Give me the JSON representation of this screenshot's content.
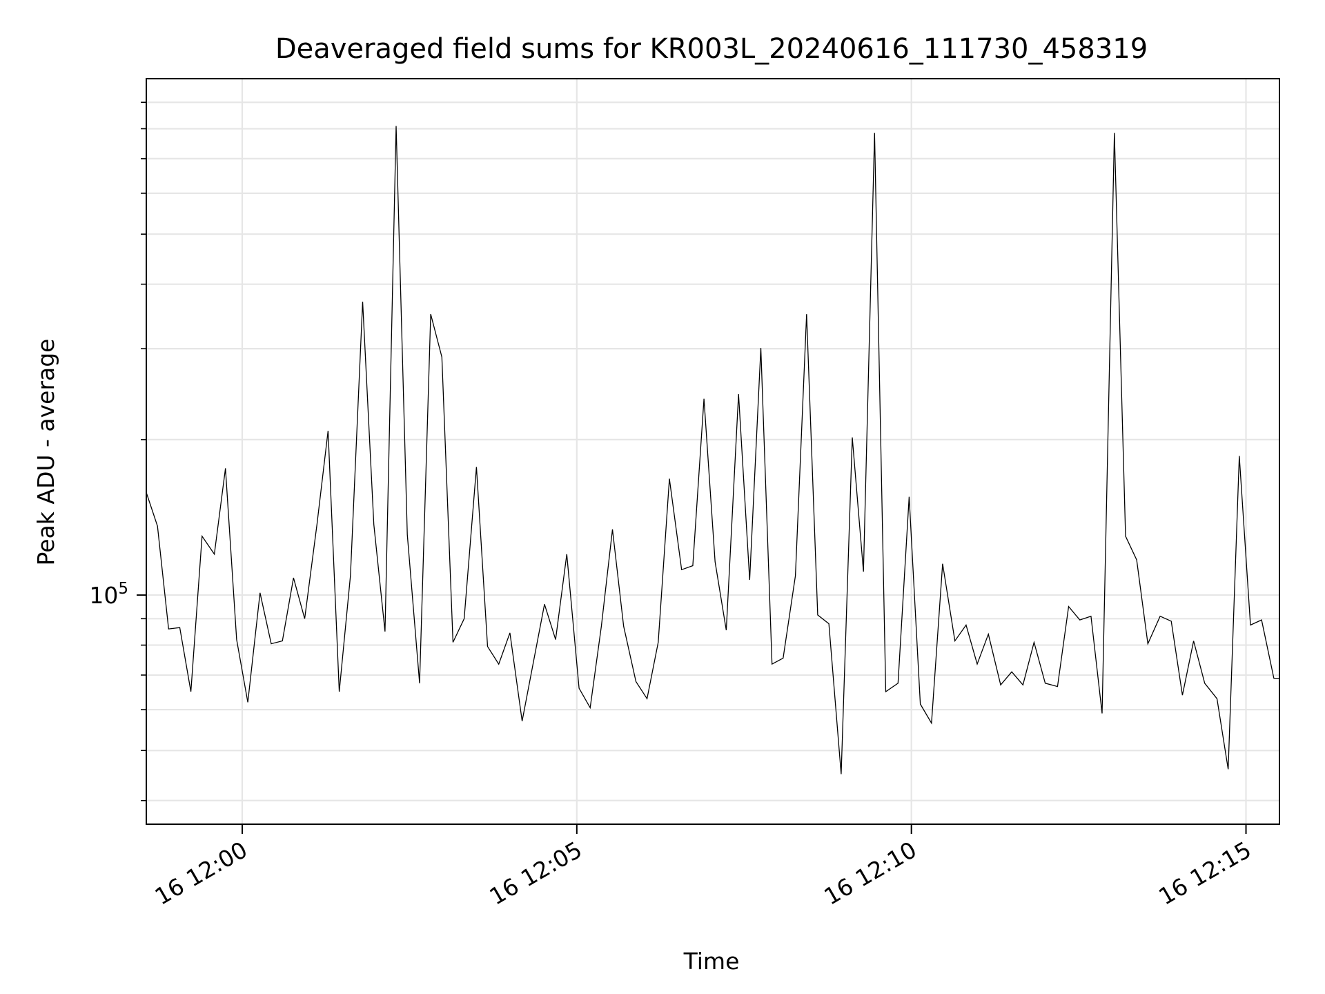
{
  "chart_data": {
    "type": "line",
    "title": "Deaveraged field sums for KR003L_20240616_111730_458319",
    "xlabel": "Time",
    "ylabel": "Peak ADU - average",
    "y_scale": "log",
    "x_ticks": [
      {
        "value": "2024-06-16 12:00",
        "label": "16 12:00"
      },
      {
        "value": "2024-06-16 12:05",
        "label": "16 12:05"
      },
      {
        "value": "2024-06-16 12:10",
        "label": "16 12:10"
      },
      {
        "value": "2024-06-16 12:15",
        "label": "16 12:15"
      }
    ],
    "y_ticks": [
      {
        "value": 100000,
        "label_base": "10",
        "label_exp": "5"
      }
    ],
    "y_minor_ticks": [
      40000,
      50000,
      60000,
      70000,
      80000,
      90000,
      200000,
      300000,
      400000,
      500000,
      600000,
      700000,
      800000,
      900000
    ],
    "xlim": [
      "2024-06-16 11:58:34",
      "2024-06-16 12:15:30"
    ],
    "ylim": [
      36000,
      1000000
    ],
    "grid": true,
    "line_color": "#000000",
    "series": [
      {
        "x": [
          "2024-06-16 11:58:34",
          "2024-06-16 11:58:44",
          "2024-06-16 11:58:54",
          "2024-06-16 11:59:04",
          "2024-06-16 11:59:14",
          "2024-06-16 11:59:24",
          "2024-06-16 11:59:35",
          "2024-06-16 11:59:45",
          "2024-06-16 11:59:55",
          "2024-06-16 12:00:05",
          "2024-06-16 12:00:16",
          "2024-06-16 12:00:26",
          "2024-06-16 12:00:36",
          "2024-06-16 12:00:46",
          "2024-06-16 12:00:56",
          "2024-06-16 12:01:07",
          "2024-06-16 12:01:17",
          "2024-06-16 12:01:27",
          "2024-06-16 12:01:37",
          "2024-06-16 12:01:48",
          "2024-06-16 12:01:58",
          "2024-06-16 12:02:08",
          "2024-06-16 12:02:18",
          "2024-06-16 12:02:28",
          "2024-06-16 12:02:39",
          "2024-06-16 12:02:49",
          "2024-06-16 12:02:59",
          "2024-06-16 12:03:09",
          "2024-06-16 12:03:19",
          "2024-06-16 12:03:30",
          "2024-06-16 12:03:40",
          "2024-06-16 12:03:50",
          "2024-06-16 12:04:00",
          "2024-06-16 12:04:11",
          "2024-06-16 12:04:21",
          "2024-06-16 12:04:31",
          "2024-06-16 12:04:41",
          "2024-06-16 12:04:51",
          "2024-06-16 12:05:02",
          "2024-06-16 12:05:12",
          "2024-06-16 12:05:22",
          "2024-06-16 12:05:32",
          "2024-06-16 12:05:42",
          "2024-06-16 12:05:53",
          "2024-06-16 12:06:03",
          "2024-06-16 12:06:13",
          "2024-06-16 12:06:23",
          "2024-06-16 12:06:34",
          "2024-06-16 12:06:44",
          "2024-06-16 12:06:54",
          "2024-06-16 12:07:04",
          "2024-06-16 12:07:14",
          "2024-06-16 12:07:25",
          "2024-06-16 12:07:35",
          "2024-06-16 12:07:45",
          "2024-06-16 12:07:55",
          "2024-06-16 12:08:05",
          "2024-06-16 12:08:16",
          "2024-06-16 12:08:26",
          "2024-06-16 12:08:36",
          "2024-06-16 12:08:46",
          "2024-06-16 12:08:57",
          "2024-06-16 12:09:07",
          "2024-06-16 12:09:17",
          "2024-06-16 12:09:27",
          "2024-06-16 12:09:37",
          "2024-06-16 12:09:48",
          "2024-06-16 12:09:58",
          "2024-06-16 12:10:08",
          "2024-06-16 12:10:18",
          "2024-06-16 12:10:28",
          "2024-06-16 12:10:39",
          "2024-06-16 12:10:49",
          "2024-06-16 12:10:59",
          "2024-06-16 12:11:09",
          "2024-06-16 12:11:20",
          "2024-06-16 12:11:30",
          "2024-06-16 12:11:40",
          "2024-06-16 12:11:50",
          "2024-06-16 12:12:00",
          "2024-06-16 12:12:11",
          "2024-06-16 12:12:21",
          "2024-06-16 12:12:31",
          "2024-06-16 12:12:41",
          "2024-06-16 12:12:51",
          "2024-06-16 12:13:02",
          "2024-06-16 12:13:12",
          "2024-06-16 12:13:22",
          "2024-06-16 12:13:32",
          "2024-06-16 12:13:43",
          "2024-06-16 12:13:53",
          "2024-06-16 12:14:03",
          "2024-06-16 12:14:13",
          "2024-06-16 12:14:23",
          "2024-06-16 12:14:34",
          "2024-06-16 12:14:44",
          "2024-06-16 12:14:54",
          "2024-06-16 12:15:04",
          "2024-06-16 12:15:14",
          "2024-06-16 12:15:25",
          "2024-06-16 12:15:30"
        ],
        "y": [
          158000,
          136000,
          86000,
          86500,
          65000,
          130000,
          120000,
          176000,
          82000,
          62000,
          101000,
          80500,
          81500,
          108000,
          90000,
          137000,
          208000,
          65000,
          109000,
          370000,
          137000,
          85000,
          810000,
          131000,
          67500,
          350000,
          289000,
          81000,
          90000,
          177000,
          79500,
          73500,
          84500,
          57000,
          74000,
          96000,
          82000,
          120000,
          66000,
          60500,
          87000,
          134000,
          87000,
          68000,
          63000,
          81000,
          168000,
          112000,
          114000,
          240000,
          116000,
          85500,
          245000,
          107000,
          301000,
          73500,
          75500,
          109000,
          350000,
          91500,
          88000,
          45000,
          202000,
          111000,
          785000,
          65000,
          67500,
          155000,
          61500,
          56500,
          115000,
          81500,
          87500,
          73500,
          84000,
          67000,
          71000,
          67000,
          81000,
          67500,
          66500,
          95000,
          89500,
          91000,
          59000,
          785000,
          130000,
          117000,
          80500,
          91000,
          89000,
          64000,
          81500,
          67500,
          63000,
          46000,
          186000,
          87500,
          89500,
          69000,
          69000
        ]
      }
    ]
  }
}
